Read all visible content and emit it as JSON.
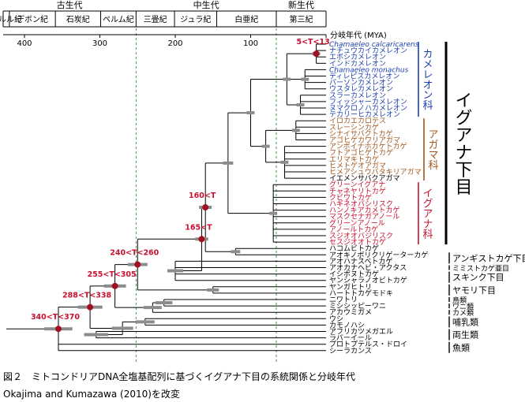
{
  "eras": [
    {
      "label": "古生代",
      "from": 440,
      "to": 252
    },
    {
      "label": "中生代",
      "from": 252,
      "to": 66
    },
    {
      "label": "新生代",
      "from": 66,
      "to": 0
    }
  ],
  "periods": [
    {
      "label": "シルル紀",
      "from": 440,
      "to": 420
    },
    {
      "label": "デボン紀",
      "from": 420,
      "to": 359
    },
    {
      "label": "石炭紀",
      "from": 359,
      "to": 299
    },
    {
      "label": "ペルム紀",
      "from": 299,
      "to": 252
    },
    {
      "label": "三畳紀",
      "from": 252,
      "to": 201
    },
    {
      "label": "ジュラ紀",
      "from": 201,
      "to": 145
    },
    {
      "label": "白亜紀",
      "from": 145,
      "to": 66
    },
    {
      "label": "第三紀",
      "from": 66,
      "to": 0
    }
  ],
  "axis": {
    "title": "分岐年代 (MYA)",
    "ticks": [
      400,
      300,
      200,
      100
    ]
  },
  "chameleons": [
    {
      "label": "Chamaeleo calcaricarens",
      "color": "blue",
      "italic": true
    },
    {
      "label": "ナチュウカイカメレオン",
      "color": "blue"
    },
    {
      "label": "エボシカメレオン",
      "color": "blue"
    },
    {
      "label": "インドカメレオン",
      "color": "blue"
    },
    {
      "label": "Chamaeleo monachus",
      "color": "blue",
      "italic": true
    },
    {
      "label": "ディレピスカメレオン",
      "color": "blue"
    },
    {
      "label": "パーソンカメレオン",
      "color": "blue"
    },
    {
      "label": "ウスタレカメレオン",
      "color": "blue"
    },
    {
      "label": "スラーカメレオン",
      "color": "blue"
    },
    {
      "label": "フィッシャーカメレオン",
      "color": "blue"
    },
    {
      "label": "ヌマクロノハカメレオン",
      "color": "blue"
    },
    {
      "label": "テカリーヒカメレオン",
      "color": "blue"
    }
  ],
  "agamas": [
    {
      "label": "イロカエカロテス",
      "color": "brown"
    },
    {
      "label": "スレーシンカゲ",
      "color": "brown"
    },
    {
      "label": "シナイサバクトカゲ",
      "color": "brown"
    },
    {
      "label": "アゴヒゲカワリアガマ",
      "color": "brown"
    },
    {
      "label": "アンボイナホカケトカゲ",
      "color": "brown"
    },
    {
      "label": "フトアゴヒゲトカゲ",
      "color": "brown"
    },
    {
      "label": "エリマキトカゲ",
      "color": "brown"
    },
    {
      "label": "ヒメトゲオアガマ",
      "color": "brown"
    },
    {
      "label": "ヒメアシュウバタキリアガマ",
      "color": "brown"
    },
    {
      "label": "イエメンサバクアガマ",
      "color": "black"
    }
  ],
  "iguanas": [
    {
      "label": "グリーンイグアナ",
      "color": "red"
    },
    {
      "label": "チャネヤリトカゲ",
      "color": "red"
    },
    {
      "label": "クビワトカゲ",
      "color": "red"
    },
    {
      "label": "ハギネオバシリスク",
      "color": "red"
    },
    {
      "label": "ハンノキアカメトカゲ",
      "color": "red"
    },
    {
      "label": "マスクセナガアノール",
      "color": "red"
    },
    {
      "label": "グリーンアノール",
      "color": "red"
    },
    {
      "label": "アノールトカゲ",
      "color": "red"
    },
    {
      "label": "スジオオバジリスク",
      "color": "red"
    },
    {
      "label": "セスジオオトカゲ",
      "color": "red"
    }
  ],
  "others": [
    {
      "label": "ハコムビトカゲ",
      "color": "black"
    },
    {
      "label": "アオキノボリクリゲーターカゲ",
      "color": "black"
    },
    {
      "label": "アオハナスベトカゲ",
      "color": "black"
    },
    {
      "label": "アオカナヘビ・アクタス",
      "color": "black"
    },
    {
      "label": "イシボヌトカゲ",
      "color": "black"
    },
    {
      "label": "ヤンシャラノオビトカゲ",
      "color": "black"
    },
    {
      "label": "ヤンガヒトリ",
      "color": "black"
    },
    {
      "label": "ハートトカゲモドキ",
      "color": "black"
    },
    {
      "label": "ニワトリ",
      "color": "black"
    },
    {
      "label": "ミシシッピーワニ",
      "color": "black"
    },
    {
      "label": "アカウミガメ",
      "color": "black"
    },
    {
      "label": "ウシ",
      "color": "black"
    },
    {
      "label": "カモノハシ",
      "color": "black"
    },
    {
      "label": "アフリカツメガエル",
      "color": "black"
    },
    {
      "label": "ラバーイール",
      "color": "black"
    },
    {
      "label": "プロトプテルス・ドロイ",
      "color": "black"
    },
    {
      "label": "シーラカンス",
      "color": "black"
    }
  ],
  "families": {
    "chamaeleon": "カメレオン科",
    "agama": "アガマ科",
    "iguana": "イグアナ科"
  },
  "infraorder": "イグアナ下目",
  "groups": [
    {
      "label": "アンギストカゲ下目",
      "size": "grp"
    },
    {
      "label": "ミミストカゲ亜目",
      "size": "sub"
    },
    {
      "label": "スキンク下目",
      "size": "grp"
    },
    {
      "label": "ヤモリ下目",
      "size": "grp"
    },
    {
      "label": "鳥類",
      "size": "sub"
    },
    {
      "label": "ワニ類",
      "size": "sub"
    },
    {
      "label": "カメ類",
      "size": "sub"
    },
    {
      "label": "哺乳類",
      "size": "grp"
    },
    {
      "label": "両生類",
      "size": "grp"
    },
    {
      "label": "魚類",
      "size": "grp"
    }
  ],
  "dates": [
    {
      "label": "5<T<13",
      "age": 13
    },
    {
      "label": "165<T",
      "age": 165
    },
    {
      "label": "160<T",
      "age": 160
    },
    {
      "label": "240<T<260",
      "age": 250
    },
    {
      "label": "255<T<305",
      "age": 280
    },
    {
      "label": "288<T<338",
      "age": 313
    },
    {
      "label": "340<T<370",
      "age": 355
    }
  ],
  "caption": {
    "line1": "図２　ミトコンドリアDNA全塩基配列に基づくイグアナ下目の系統関係と分岐年代",
    "line2": "Okajima and Kumazawa (2010)を改変"
  },
  "colors": {
    "blue": "#1a3fb0",
    "brown": "#a0561c",
    "red": "#c8102e",
    "black": "#000000",
    "node": "#a01020",
    "bar": "#8c8c8c",
    "guide": "#2e8b2e"
  }
}
